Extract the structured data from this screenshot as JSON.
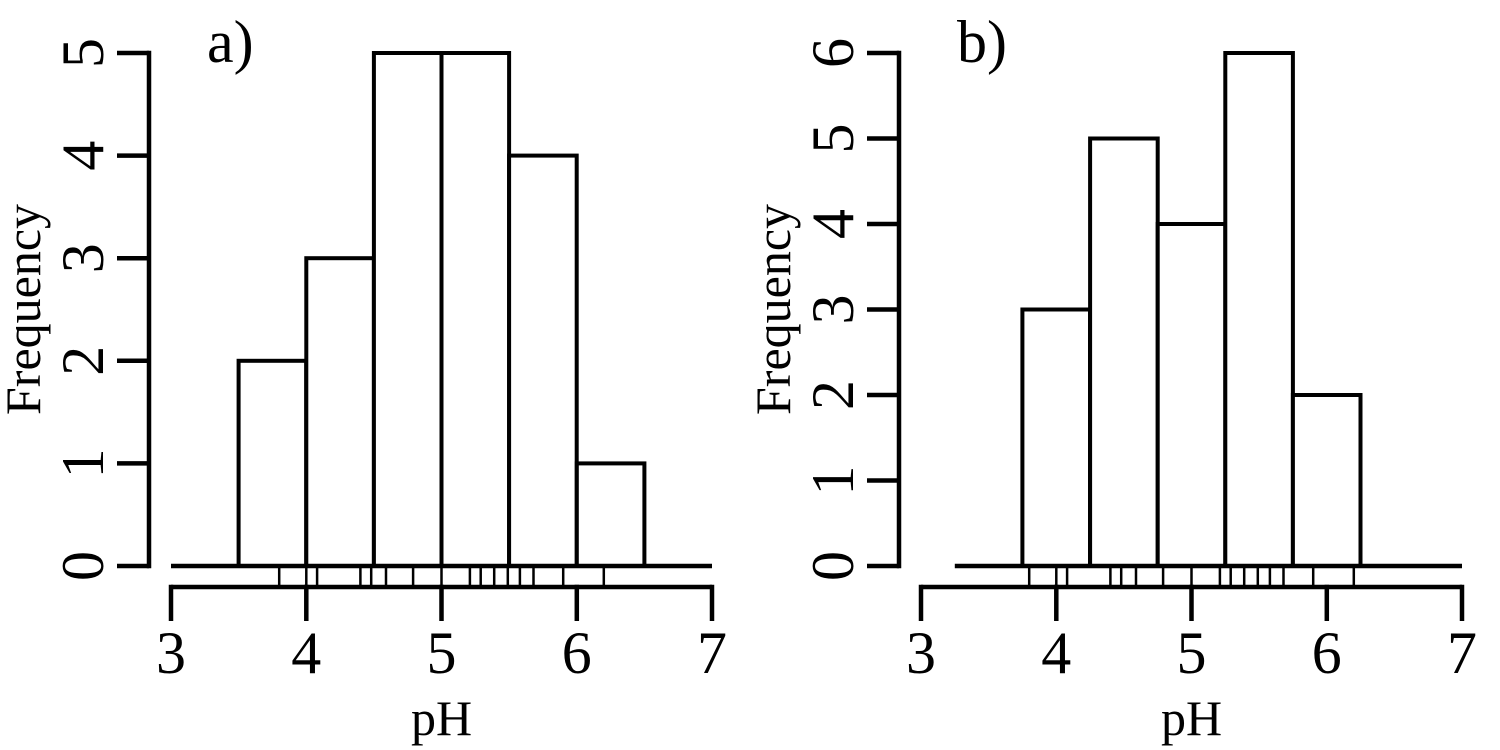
{
  "figure": {
    "background": "#ffffff",
    "ink_color": "#000000",
    "description": "Two-panel histogram figure of the same pH data with different bin origins, with data rug marks under each histogram"
  },
  "chart_data": [
    {
      "type": "bar",
      "subtype": "histogram",
      "panel_label": "a)",
      "xlabel": "pH",
      "ylabel": "Frequency",
      "xlim": [
        3,
        7
      ],
      "ylim": [
        0,
        5
      ],
      "x_ticks": [
        3,
        4,
        5,
        6,
        7
      ],
      "y_ticks": [
        0,
        1,
        2,
        3,
        4,
        5
      ],
      "bin_edges": [
        3.5,
        4.0,
        4.5,
        5.0,
        5.5,
        6.0,
        6.5
      ],
      "counts": [
        2,
        3,
        5,
        5,
        4,
        1
      ],
      "rug_values": [
        3.8,
        4.0,
        4.08,
        4.4,
        4.48,
        4.59,
        4.79,
        5.0,
        5.21,
        5.29,
        5.39,
        5.49,
        5.58,
        5.68,
        5.9,
        6.2
      ],
      "baseline_span": [
        3.0,
        7.0
      ],
      "grid": false,
      "legend": false
    },
    {
      "type": "bar",
      "subtype": "histogram",
      "panel_label": "b)",
      "xlabel": "pH",
      "ylabel": "Frequency",
      "xlim": [
        3,
        7
      ],
      "ylim": [
        0,
        6
      ],
      "x_ticks": [
        3,
        4,
        5,
        6,
        7
      ],
      "y_ticks": [
        0,
        1,
        2,
        3,
        4,
        5,
        6
      ],
      "bin_edges": [
        3.75,
        4.25,
        4.75,
        5.25,
        5.75,
        6.25
      ],
      "counts": [
        3,
        5,
        4,
        6,
        2
      ],
      "rug_values": [
        3.8,
        4.0,
        4.08,
        4.4,
        4.48,
        4.59,
        4.79,
        5.0,
        5.21,
        5.29,
        5.39,
        5.49,
        5.58,
        5.68,
        5.9,
        6.2
      ],
      "baseline_span": [
        3.25,
        7.0
      ],
      "grid": false,
      "legend": false
    }
  ]
}
